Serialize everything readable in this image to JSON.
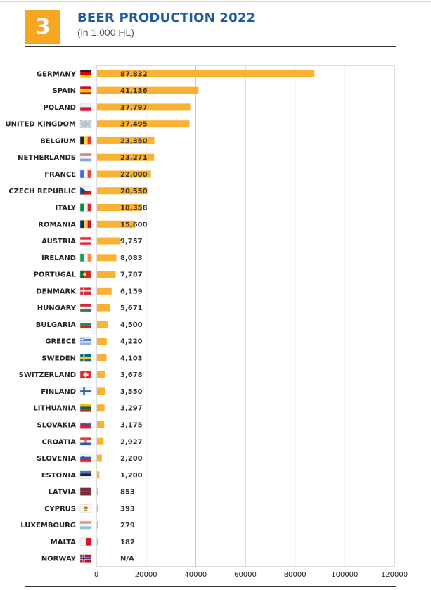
{
  "header": {
    "badge": "3",
    "title": "BEER PRODUCTION 2022",
    "subtitle": "(in 1,000 HL)"
  },
  "colors": {
    "bar": "#f9b233",
    "accent": "#f5a623",
    "title": "#1f5aa0"
  },
  "chart_data": {
    "type": "bar",
    "orientation": "horizontal",
    "title": "BEER PRODUCTION 2022",
    "subtitle": "(in 1,000 HL)",
    "xlim": [
      0,
      120000
    ],
    "xticks": [
      "0",
      "20000",
      "40000",
      "60000",
      "80000",
      "100000",
      "120000"
    ],
    "grid": true,
    "categories": [
      "GERMANY",
      "SPAIN",
      "POLAND",
      "UNITED KINGDOM",
      "BELGIUM",
      "NETHERLANDS",
      "FRANCE",
      "CZECH REPUBLIC",
      "ITALY",
      "ROMANIA",
      "AUSTRIA",
      "IRELAND",
      "PORTUGAL",
      "DENMARK",
      "HUNGARY",
      "BULGARIA",
      "GREECE",
      "SWEDEN",
      "SWITZERLAND",
      "FINLAND",
      "LITHUANIA",
      "SLOVAKIA",
      "CROATIA",
      "SLOVENIA",
      "ESTONIA",
      "LATVIA",
      "CYPRUS",
      "LUXEMBOURG",
      "MALTA",
      "NORWAY"
    ],
    "values": [
      87832,
      41136,
      37797,
      37495,
      23350,
      23271,
      22000,
      20550,
      18358,
      15600,
      9757,
      8083,
      7787,
      6159,
      5671,
      4500,
      4220,
      4103,
      3678,
      3550,
      3297,
      3175,
      2927,
      2200,
      1200,
      853,
      393,
      279,
      182,
      null
    ],
    "value_labels": [
      "87,832",
      "41,136",
      "37,797",
      "37,495",
      "23,350",
      "23,271",
      "22,000",
      "20,550",
      "18,358",
      "15,600",
      "9,757",
      "8,083",
      "7,787",
      "6,159",
      "5,671",
      "4,500",
      "4,220",
      "4,103",
      "3,678",
      "3,550",
      "3,297",
      "3,175",
      "2,927",
      "2,200",
      "1,200",
      "853",
      "393",
      "279",
      "182",
      "N/A"
    ],
    "flags": [
      "germany-flag-icon",
      "spain-flag-icon",
      "poland-flag-icon",
      "uk-flag-icon",
      "belgium-flag-icon",
      "netherlands-flag-icon",
      "france-flag-icon",
      "czech-flag-icon",
      "italy-flag-icon",
      "romania-flag-icon",
      "austria-flag-icon",
      "ireland-flag-icon",
      "portugal-flag-icon",
      "denmark-flag-icon",
      "hungary-flag-icon",
      "bulgaria-flag-icon",
      "greece-flag-icon",
      "sweden-flag-icon",
      "switzerland-flag-icon",
      "finland-flag-icon",
      "lithuania-flag-icon",
      "slovakia-flag-icon",
      "croatia-flag-icon",
      "slovenia-flag-icon",
      "estonia-flag-icon",
      "latvia-flag-icon",
      "cyprus-flag-icon",
      "luxembourg-flag-icon",
      "malta-flag-icon",
      "norway-flag-icon"
    ]
  }
}
